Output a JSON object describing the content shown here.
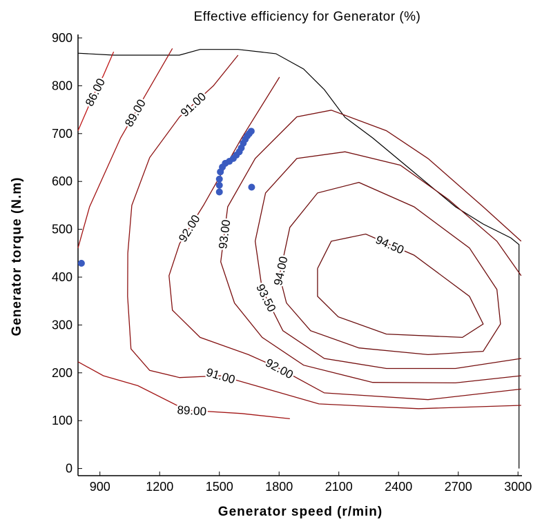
{
  "chart_data": {
    "type": "contour",
    "title": "Effective efficiency for Generator (%)",
    "x_label": "Generator speed (r/min)",
    "y_label": "Generator torque (N.m)",
    "xlim": [
      790,
      3020
    ],
    "ylim": [
      -15,
      900
    ],
    "xticks": [
      900,
      1200,
      1500,
      1800,
      2100,
      2400,
      2700,
      3000
    ],
    "yticks": [
      0,
      100,
      200,
      300,
      400,
      500,
      600,
      700,
      800,
      900
    ],
    "contour_color": "#c01818",
    "boundary_color": "#000000",
    "point_color": "#3a5bc0",
    "contours": [
      {
        "level": 86,
        "label": "86.00",
        "x": [
          790,
          865,
          917,
          969
        ],
        "y": [
          706,
          778,
          821,
          871
        ]
      },
      {
        "level": 89,
        "label": "89.00",
        "x": [
          790,
          848,
          1004,
          1125,
          1264
        ],
        "y": [
          461,
          547,
          691,
          778,
          878
        ]
      },
      {
        "level": 89,
        "label": "89.00",
        "x": [
          790,
          917,
          1091,
          1334,
          1611,
          1854
        ],
        "y": [
          223,
          194,
          173,
          122,
          115,
          104
        ]
      },
      {
        "level": 91,
        "label": "91.00",
        "x": [
          1594,
          1470,
          1300,
          1150,
          1060,
          1040,
          1039,
          1056,
          1150,
          1300,
          1507,
          1750,
          2000,
          2500,
          3016
        ],
        "y": [
          864,
          800,
          735,
          650,
          550,
          450,
          360,
          250,
          205,
          190,
          194,
          165,
          135,
          125,
          132
        ]
      },
      {
        "level": 92,
        "label": "92.00",
        "x": [
          1802,
          1611,
          1420,
          1300,
          1247,
          1264,
          1403,
          1646,
          1802,
          2027,
          2548,
          3016
        ],
        "y": [
          818,
          690,
          550,
          470,
          403,
          331,
          274,
          238,
          209,
          158,
          144,
          166
        ]
      },
      {
        "level": 93,
        "label": "93.00",
        "x": [
          3016,
          2825,
          2548,
          2339,
          2062,
          1889,
          1680,
          1542,
          1507,
          1576,
          1715,
          1923,
          2270,
          2686,
          3016
        ],
        "y": [
          475,
          547,
          648,
          706,
          749,
          735,
          648,
          547,
          432,
          346,
          274,
          216,
          180,
          179,
          194
        ]
      },
      {
        "level": 93.5,
        "label": "93.50",
        "x": [
          3016,
          2894,
          2652,
          2409,
          2131,
          1889,
          1732,
          1680,
          1715,
          1819,
          2027,
          2339,
          2686,
          3016
        ],
        "y": [
          403,
          475,
          562,
          634,
          662,
          648,
          576,
          475,
          374,
          288,
          230,
          209,
          209,
          230
        ]
      },
      {
        "level": 94,
        "label": "94.00",
        "x": [
          1802,
          1854,
          1993,
          2201,
          2478,
          2756,
          2894,
          2912,
          2825,
          2548,
          2201,
          1958,
          1837,
          1802
        ],
        "y": [
          403,
          504,
          576,
          598,
          547,
          461,
          374,
          302,
          245,
          238,
          252,
          288,
          346,
          403
        ]
      },
      {
        "level": 94.5,
        "label": "94.50",
        "x": [
          1993,
          2062,
          2235,
          2478,
          2756,
          2825,
          2721,
          2339,
          2097,
          1993,
          1993
        ],
        "y": [
          418,
          475,
          490,
          446,
          360,
          302,
          274,
          281,
          317,
          360,
          418
        ]
      }
    ],
    "boundary": {
      "x": [
        790,
        969,
        1299,
        1403,
        1594,
        1784,
        1923,
        2027,
        2131,
        2270,
        2478,
        2686,
        2825,
        2964,
        3005,
        3005
      ],
      "y": [
        868,
        864,
        864,
        876,
        876,
        867,
        835,
        792,
        734,
        691,
        619,
        547,
        511,
        482,
        468,
        0
      ]
    },
    "points": {
      "x": [
        807,
        1500,
        1500,
        1500,
        1505,
        1515,
        1530,
        1550,
        1570,
        1585,
        1600,
        1610,
        1620,
        1630,
        1640,
        1650,
        1660,
        1662
      ],
      "y": [
        429,
        578,
        592,
        605,
        620,
        630,
        638,
        642,
        648,
        655,
        662,
        670,
        680,
        688,
        695,
        700,
        705,
        588
      ]
    }
  }
}
